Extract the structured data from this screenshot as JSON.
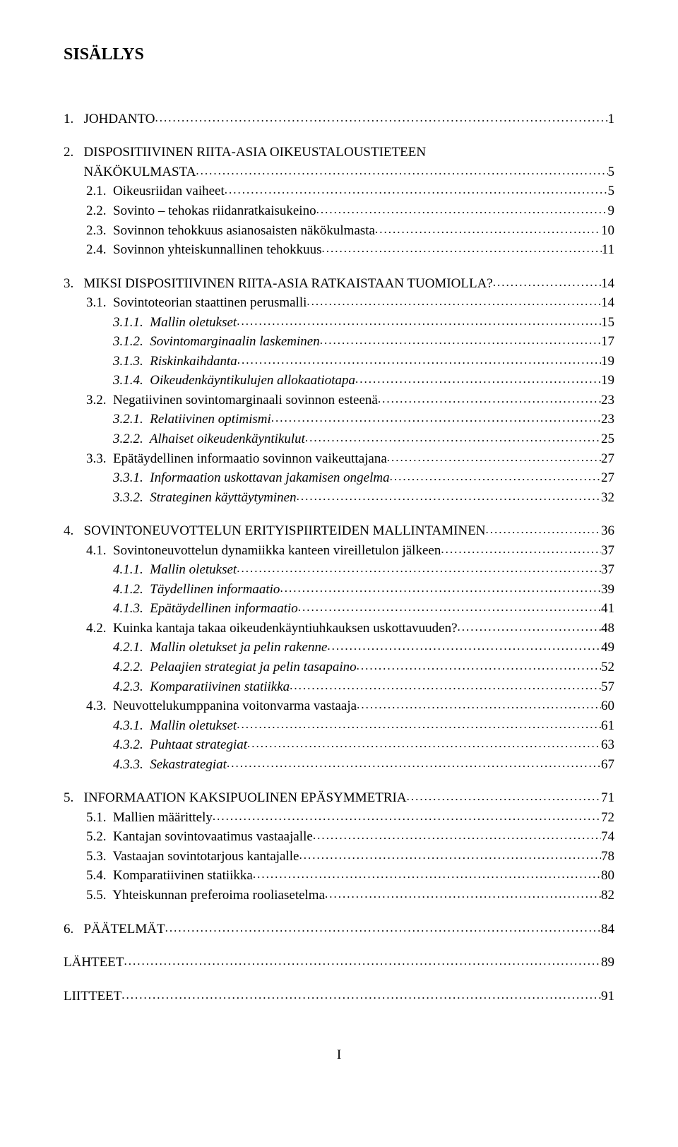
{
  "title": "SISÄLLYS",
  "entries": [
    {
      "level": 1,
      "text": "1.   JOHDANTO",
      "page": "1",
      "gapBefore": true
    },
    {
      "level": 1,
      "text": "2.   DISPOSITIIVINEN RIITA-ASIA OIKEUSTALOUSTIETEEN",
      "nopage": true,
      "gapBefore": true
    },
    {
      "level": 1,
      "text": "      NÄKÖKULMASTA",
      "page": "5"
    },
    {
      "level": 2,
      "text": "2.1.  Oikeusriidan vaiheet",
      "page": "5"
    },
    {
      "level": 2,
      "text": "2.2.  Sovinto – tehokas riidanratkaisukeino",
      "page": "9"
    },
    {
      "level": 2,
      "text": "2.3.  Sovinnon tehokkuus asianosaisten näkökulmasta",
      "page": "10"
    },
    {
      "level": 2,
      "text": "2.4.  Sovinnon yhteiskunnallinen tehokkuus",
      "page": "11"
    },
    {
      "level": 1,
      "text": "3.   MIKSI DISPOSITIIVINEN RIITA-ASIA RATKAISTAAN TUOMIOLLA?",
      "page": "14",
      "gapBefore": true
    },
    {
      "level": 2,
      "text": "3.1.  Sovintoteorian staattinen perusmalli",
      "page": "14"
    },
    {
      "level": 3,
      "text": "3.1.1.  Mallin oletukset",
      "page": "15",
      "italic": true
    },
    {
      "level": 3,
      "text": "3.1.2.  Sovintomarginaalin laskeminen",
      "page": "17",
      "italic": true
    },
    {
      "level": 3,
      "text": "3.1.3.  Riskinkaihdanta",
      "page": "19",
      "italic": true
    },
    {
      "level": 3,
      "text": "3.1.4.  Oikeudenkäyntikulujen allokaatiotapa",
      "page": "19",
      "italic": true
    },
    {
      "level": 2,
      "text": "3.2.  Negatiivinen sovintomarginaali sovinnon esteenä",
      "page": "23"
    },
    {
      "level": 3,
      "text": "3.2.1.  Relatiivinen optimismi",
      "page": "23",
      "italic": true
    },
    {
      "level": 3,
      "text": "3.2.2.  Alhaiset oikeudenkäyntikulut",
      "page": "25",
      "italic": true
    },
    {
      "level": 2,
      "text": "3.3.  Epätäydellinen informaatio sovinnon vaikeuttajana",
      "page": "27"
    },
    {
      "level": 3,
      "text": "3.3.1.  Informaation uskottavan jakamisen ongelma",
      "page": "27",
      "italic": true
    },
    {
      "level": 3,
      "text": "3.3.2.  Strateginen käyttäytyminen",
      "page": "32",
      "italic": true
    },
    {
      "level": 1,
      "text": "4.   SOVINTONEUVOTTELUN ERITYISPIIRTEIDEN MALLINTAMINEN",
      "page": "36",
      "gapBefore": true
    },
    {
      "level": 2,
      "text": "4.1.  Sovintoneuvottelun dynamiikka kanteen vireilletulon jälkeen",
      "page": "37"
    },
    {
      "level": 3,
      "text": "4.1.1.  Mallin oletukset",
      "page": "37",
      "italic": true
    },
    {
      "level": 3,
      "text": "4.1.2.  Täydellinen informaatio",
      "page": "39",
      "italic": true
    },
    {
      "level": 3,
      "text": "4.1.3.  Epätäydellinen informaatio",
      "page": "41",
      "italic": true
    },
    {
      "level": 2,
      "text": "4.2.  Kuinka kantaja takaa oikeudenkäyntiuhkauksen uskottavuuden?",
      "page": "48"
    },
    {
      "level": 3,
      "text": "4.2.1.  Mallin oletukset ja pelin rakenne",
      "page": "49",
      "italic": true
    },
    {
      "level": 3,
      "text": "4.2.2.  Pelaajien strategiat ja pelin tasapaino",
      "page": "52",
      "italic": true
    },
    {
      "level": 3,
      "text": "4.2.3.  Komparatiivinen statiikka",
      "page": "57",
      "italic": true
    },
    {
      "level": 2,
      "text": "4.3.  Neuvottelukumppanina voitonvarma vastaaja",
      "page": "60"
    },
    {
      "level": 3,
      "text": "4.3.1.  Mallin oletukset",
      "page": "61",
      "italic": true
    },
    {
      "level": 3,
      "text": "4.3.2.  Puhtaat strategiat",
      "page": "63",
      "italic": true
    },
    {
      "level": 3,
      "text": "4.3.3.  Sekastrategiat",
      "page": "67",
      "italic": true
    },
    {
      "level": 1,
      "text": "5.   INFORMAATION KAKSIPUOLINEN EPÄSYMMETRIA",
      "page": "71",
      "gapBefore": true
    },
    {
      "level": 2,
      "text": "5.1.  Mallien määrittely",
      "page": "72"
    },
    {
      "level": 2,
      "text": "5.2.  Kantajan sovintovaatimus vastaajalle",
      "page": "74"
    },
    {
      "level": 2,
      "text": "5.3.  Vastaajan sovintotarjous kantajalle",
      "page": "78"
    },
    {
      "level": 2,
      "text": "5.4.  Komparatiivinen statiikka",
      "page": "80"
    },
    {
      "level": 2,
      "text": "5.5.  Yhteiskunnan preferoima rooliasetelma",
      "page": "82"
    },
    {
      "level": 1,
      "text": "6.   PÄÄTELMÄT",
      "page": "84",
      "gapBefore": true
    },
    {
      "level": 1,
      "text": "LÄHTEET",
      "page": "89",
      "gapBefore": true
    },
    {
      "level": 1,
      "text": "LIITTEET",
      "page": "91",
      "gapBefore": true
    }
  ],
  "pageNumber": "I"
}
